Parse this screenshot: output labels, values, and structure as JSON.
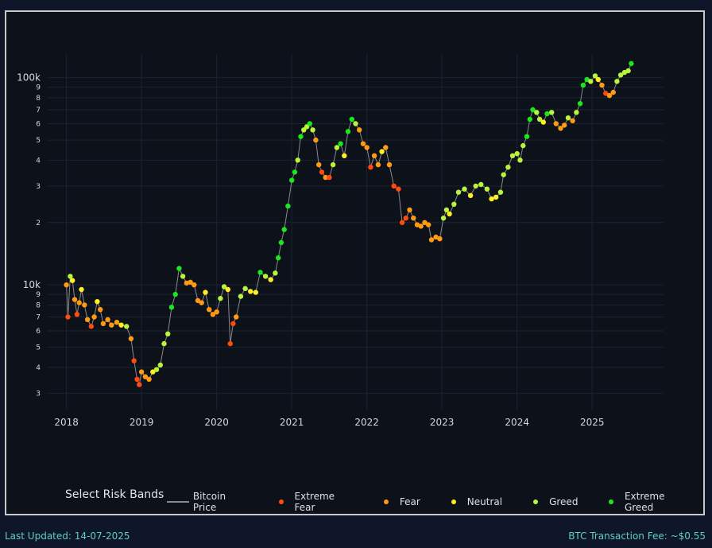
{
  "legend": {
    "title": "Select Risk Bands",
    "items": [
      {
        "label": "Bitcoin Price",
        "kind": "line",
        "color": "#8a8a8a"
      },
      {
        "label": "Extreme Fear",
        "kind": "dot",
        "color": "#ff4a10"
      },
      {
        "label": "Fear",
        "kind": "dot",
        "color": "#ff9a12"
      },
      {
        "label": "Neutral",
        "kind": "dot",
        "color": "#ffee20"
      },
      {
        "label": "Greed",
        "kind": "dot",
        "color": "#b8f53a"
      },
      {
        "label": "Extreme Greed",
        "kind": "dot",
        "color": "#18e81c"
      }
    ]
  },
  "footer": {
    "updated": "Last Updated: 14-07-2025",
    "fee": "BTC Transaction Fee: ~$0.55"
  },
  "chart_data": {
    "type": "scatter",
    "yscale": "log",
    "ylim": [
      2500,
      130000
    ],
    "xlim": [
      2017.75,
      2025.95
    ],
    "grid": true,
    "x_ticks": [
      "2018",
      "2019",
      "2020",
      "2021",
      "2022",
      "2023",
      "2024",
      "2025"
    ],
    "y_ticks": [
      {
        "v": 3000,
        "l": "3"
      },
      {
        "v": 4000,
        "l": "4"
      },
      {
        "v": 5000,
        "l": "5"
      },
      {
        "v": 6000,
        "l": "6"
      },
      {
        "v": 7000,
        "l": "7"
      },
      {
        "v": 8000,
        "l": "8"
      },
      {
        "v": 9000,
        "l": "9"
      },
      {
        "v": 10000,
        "l": "10k"
      },
      {
        "v": 20000,
        "l": "2"
      },
      {
        "v": 30000,
        "l": "3"
      },
      {
        "v": 40000,
        "l": "4"
      },
      {
        "v": 50000,
        "l": "5"
      },
      {
        "v": 60000,
        "l": "6"
      },
      {
        "v": 70000,
        "l": "7"
      },
      {
        "v": 80000,
        "l": "8"
      },
      {
        "v": 90000,
        "l": "9"
      },
      {
        "v": 100000,
        "l": "100k"
      }
    ],
    "series_name": "Bitcoin Price",
    "points": [
      [
        2018.0,
        10000,
        "fear"
      ],
      [
        2018.02,
        7000,
        "extreme_fear"
      ],
      [
        2018.05,
        11000,
        "greed"
      ],
      [
        2018.08,
        10500,
        "neutral"
      ],
      [
        2018.11,
        8500,
        "fear"
      ],
      [
        2018.14,
        7200,
        "extreme_fear"
      ],
      [
        2018.17,
        8200,
        "fear"
      ],
      [
        2018.2,
        9500,
        "neutral"
      ],
      [
        2018.24,
        8000,
        "fear"
      ],
      [
        2018.28,
        6800,
        "fear"
      ],
      [
        2018.33,
        6300,
        "extreme_fear"
      ],
      [
        2018.37,
        7000,
        "fear"
      ],
      [
        2018.41,
        8300,
        "neutral"
      ],
      [
        2018.45,
        7600,
        "fear"
      ],
      [
        2018.49,
        6500,
        "fear"
      ],
      [
        2018.55,
        6800,
        "fear"
      ],
      [
        2018.6,
        6400,
        "fear"
      ],
      [
        2018.67,
        6600,
        "fear"
      ],
      [
        2018.73,
        6400,
        "neutral"
      ],
      [
        2018.8,
        6300,
        "greed"
      ],
      [
        2018.86,
        5500,
        "fear"
      ],
      [
        2018.9,
        4300,
        "extreme_fear"
      ],
      [
        2018.94,
        3500,
        "extreme_fear"
      ],
      [
        2018.97,
        3300,
        "extreme_fear"
      ],
      [
        2019.0,
        3800,
        "fear"
      ],
      [
        2019.05,
        3600,
        "fear"
      ],
      [
        2019.1,
        3500,
        "fear"
      ],
      [
        2019.15,
        3800,
        "neutral"
      ],
      [
        2019.2,
        3900,
        "greed"
      ],
      [
        2019.25,
        4100,
        "greed"
      ],
      [
        2019.3,
        5200,
        "greed"
      ],
      [
        2019.35,
        5800,
        "greed"
      ],
      [
        2019.4,
        7800,
        "extreme_greed"
      ],
      [
        2019.45,
        9000,
        "extreme_greed"
      ],
      [
        2019.5,
        12000,
        "extreme_greed"
      ],
      [
        2019.55,
        11000,
        "greed"
      ],
      [
        2019.6,
        10200,
        "fear"
      ],
      [
        2019.65,
        10300,
        "fear"
      ],
      [
        2019.7,
        10000,
        "fear"
      ],
      [
        2019.75,
        8400,
        "fear"
      ],
      [
        2019.8,
        8200,
        "fear"
      ],
      [
        2019.85,
        9200,
        "neutral"
      ],
      [
        2019.9,
        7600,
        "fear"
      ],
      [
        2019.95,
        7200,
        "fear"
      ],
      [
        2020.0,
        7400,
        "fear"
      ],
      [
        2020.05,
        8600,
        "greed"
      ],
      [
        2020.1,
        9800,
        "greed"
      ],
      [
        2020.15,
        9500,
        "neutral"
      ],
      [
        2020.18,
        5200,
        "extreme_fear"
      ],
      [
        2020.22,
        6500,
        "extreme_fear"
      ],
      [
        2020.26,
        7000,
        "fear"
      ],
      [
        2020.32,
        8800,
        "greed"
      ],
      [
        2020.38,
        9600,
        "greed"
      ],
      [
        2020.45,
        9300,
        "neutral"
      ],
      [
        2020.52,
        9200,
        "neutral"
      ],
      [
        2020.58,
        11500,
        "extreme_greed"
      ],
      [
        2020.65,
        11000,
        "greed"
      ],
      [
        2020.72,
        10600,
        "neutral"
      ],
      [
        2020.78,
        11400,
        "greed"
      ],
      [
        2020.82,
        13500,
        "extreme_greed"
      ],
      [
        2020.86,
        16000,
        "extreme_greed"
      ],
      [
        2020.9,
        18500,
        "extreme_greed"
      ],
      [
        2020.95,
        24000,
        "extreme_greed"
      ],
      [
        2021.0,
        32000,
        "extreme_greed"
      ],
      [
        2021.04,
        35000,
        "extreme_greed"
      ],
      [
        2021.08,
        40000,
        "greed"
      ],
      [
        2021.12,
        52000,
        "extreme_greed"
      ],
      [
        2021.16,
        56000,
        "greed"
      ],
      [
        2021.2,
        58000,
        "greed"
      ],
      [
        2021.24,
        60000,
        "extreme_greed"
      ],
      [
        2021.28,
        56000,
        "greed"
      ],
      [
        2021.32,
        50000,
        "fear"
      ],
      [
        2021.36,
        38000,
        "fear"
      ],
      [
        2021.4,
        35000,
        "extreme_fear"
      ],
      [
        2021.45,
        33000,
        "fear"
      ],
      [
        2021.5,
        33000,
        "extreme_fear"
      ],
      [
        2021.55,
        38000,
        "greed"
      ],
      [
        2021.6,
        46000,
        "greed"
      ],
      [
        2021.65,
        48000,
        "extreme_greed"
      ],
      [
        2021.7,
        42000,
        "neutral"
      ],
      [
        2021.75,
        55000,
        "extreme_greed"
      ],
      [
        2021.8,
        63000,
        "extreme_greed"
      ],
      [
        2021.85,
        60000,
        "greed"
      ],
      [
        2021.9,
        56000,
        "fear"
      ],
      [
        2021.95,
        48000,
        "fear"
      ],
      [
        2022.0,
        46000,
        "fear"
      ],
      [
        2022.05,
        37000,
        "extreme_fear"
      ],
      [
        2022.1,
        42000,
        "fear"
      ],
      [
        2022.15,
        38000,
        "fear"
      ],
      [
        2022.2,
        44000,
        "neutral"
      ],
      [
        2022.25,
        46000,
        "fear"
      ],
      [
        2022.3,
        38000,
        "fear"
      ],
      [
        2022.36,
        30000,
        "extreme_fear"
      ],
      [
        2022.42,
        29000,
        "extreme_fear"
      ],
      [
        2022.47,
        20000,
        "extreme_fear"
      ],
      [
        2022.52,
        21000,
        "extreme_fear"
      ],
      [
        2022.57,
        23000,
        "fear"
      ],
      [
        2022.62,
        21000,
        "fear"
      ],
      [
        2022.67,
        19500,
        "fear"
      ],
      [
        2022.72,
        19200,
        "fear"
      ],
      [
        2022.77,
        20000,
        "fear"
      ],
      [
        2022.82,
        19500,
        "fear"
      ],
      [
        2022.86,
        16500,
        "fear"
      ],
      [
        2022.92,
        17000,
        "fear"
      ],
      [
        2022.97,
        16700,
        "fear"
      ],
      [
        2023.02,
        21000,
        "greed"
      ],
      [
        2023.06,
        23000,
        "greed"
      ],
      [
        2023.1,
        22000,
        "neutral"
      ],
      [
        2023.16,
        24500,
        "greed"
      ],
      [
        2023.22,
        28000,
        "greed"
      ],
      [
        2023.3,
        29000,
        "greed"
      ],
      [
        2023.38,
        27000,
        "neutral"
      ],
      [
        2023.45,
        30000,
        "greed"
      ],
      [
        2023.52,
        30500,
        "greed"
      ],
      [
        2023.6,
        29000,
        "greed"
      ],
      [
        2023.66,
        26000,
        "neutral"
      ],
      [
        2023.72,
        26500,
        "neutral"
      ],
      [
        2023.78,
        28000,
        "greed"
      ],
      [
        2023.82,
        34000,
        "greed"
      ],
      [
        2023.88,
        37000,
        "greed"
      ],
      [
        2023.94,
        42000,
        "greed"
      ],
      [
        2024.0,
        43000,
        "greed"
      ],
      [
        2024.04,
        40000,
        "greed"
      ],
      [
        2024.08,
        47000,
        "greed"
      ],
      [
        2024.13,
        52000,
        "extreme_greed"
      ],
      [
        2024.17,
        63000,
        "extreme_greed"
      ],
      [
        2024.21,
        70000,
        "extreme_greed"
      ],
      [
        2024.26,
        68000,
        "greed"
      ],
      [
        2024.3,
        63000,
        "greed"
      ],
      [
        2024.35,
        61000,
        "neutral"
      ],
      [
        2024.4,
        67000,
        "extreme_greed"
      ],
      [
        2024.46,
        68000,
        "greed"
      ],
      [
        2024.52,
        60000,
        "fear"
      ],
      [
        2024.58,
        57000,
        "fear"
      ],
      [
        2024.63,
        59000,
        "fear"
      ],
      [
        2024.68,
        64000,
        "greed"
      ],
      [
        2024.74,
        62000,
        "fear"
      ],
      [
        2024.79,
        68000,
        "greed"
      ],
      [
        2024.84,
        75000,
        "extreme_greed"
      ],
      [
        2024.88,
        92000,
        "extreme_greed"
      ],
      [
        2024.93,
        98000,
        "extreme_greed"
      ],
      [
        2024.98,
        96000,
        "greed"
      ],
      [
        2025.04,
        102000,
        "greed"
      ],
      [
        2025.08,
        98000,
        "neutral"
      ],
      [
        2025.13,
        92000,
        "fear"
      ],
      [
        2025.18,
        84000,
        "extreme_fear"
      ],
      [
        2025.23,
        82000,
        "fear"
      ],
      [
        2025.28,
        85000,
        "fear"
      ],
      [
        2025.33,
        96000,
        "greed"
      ],
      [
        2025.38,
        103000,
        "greed"
      ],
      [
        2025.43,
        106000,
        "greed"
      ],
      [
        2025.48,
        108000,
        "greed"
      ],
      [
        2025.52,
        117000,
        "extreme_greed"
      ]
    ]
  }
}
